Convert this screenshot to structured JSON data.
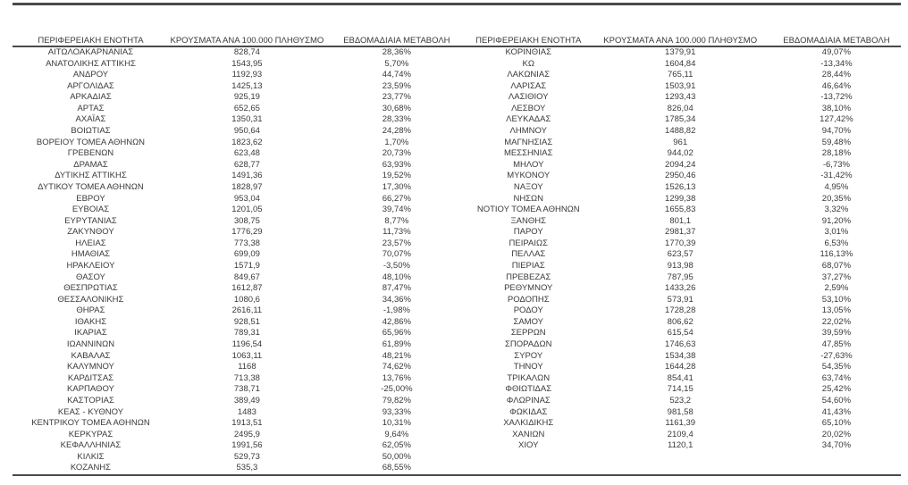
{
  "table": {
    "headers": [
      "ΠΕΡΙΦΕΡΕΙΑΚΗ ΕΝΟΤΗΤΑ",
      "ΚΡΟΥΣΜΑΤΑ ΑΝΑ 100.000 ΠΛΗΘΥΣΜΟ",
      "ΕΒΔΟΜΑΔΙΑΙΑ ΜΕΤΑΒΟΛΗ"
    ],
    "left_rows": [
      [
        "ΑΙΤΩΛΟΑΚΑΡΝΑΝΙΑΣ",
        "828,74",
        "28,36%"
      ],
      [
        "ΑΝΑΤΟΛΙΚΗΣ ΑΤΤΙΚΗΣ",
        "1543,95",
        "5,70%"
      ],
      [
        "ΑΝΔΡΟΥ",
        "1192,93",
        "44,74%"
      ],
      [
        "ΑΡΓΟΛΙΔΑΣ",
        "1425,13",
        "23,59%"
      ],
      [
        "ΑΡΚΑΔΙΑΣ",
        "925,19",
        "23,77%"
      ],
      [
        "ΑΡΤΑΣ",
        "652,65",
        "30,68%"
      ],
      [
        "ΑΧΑΪΑΣ",
        "1350,31",
        "28,33%"
      ],
      [
        "ΒΟΙΩΤΙΑΣ",
        "950,64",
        "24,28%"
      ],
      [
        "ΒΟΡΕΙΟΥ ΤΟΜΕΑ ΑΘΗΝΩΝ",
        "1823,62",
        "1,70%"
      ],
      [
        "ΓΡΕΒΕΝΩΝ",
        "623,48",
        "20,73%"
      ],
      [
        "ΔΡΑΜΑΣ",
        "628,77",
        "63,93%"
      ],
      [
        "ΔΥΤΙΚΗΣ ΑΤΤΙΚΗΣ",
        "1491,36",
        "19,52%"
      ],
      [
        "ΔΥΤΙΚΟΥ ΤΟΜΕΑ ΑΘΗΝΩΝ",
        "1828,97",
        "17,30%"
      ],
      [
        "ΕΒΡΟΥ",
        "953,04",
        "66,27%"
      ],
      [
        "ΕΥΒΟΙΑΣ",
        "1201,05",
        "39,74%"
      ],
      [
        "ΕΥΡΥΤΑΝΙΑΣ",
        "308,75",
        "8,77%"
      ],
      [
        "ΖΑΚΥΝΘΟΥ",
        "1776,29",
        "11,73%"
      ],
      [
        "ΗΛΕΙΑΣ",
        "773,38",
        "23,57%"
      ],
      [
        "ΗΜΑΘΙΑΣ",
        "699,09",
        "70,07%"
      ],
      [
        "ΗΡΑΚΛΕΙΟΥ",
        "1571,9",
        "-3,50%"
      ],
      [
        "ΘΑΣΟΥ",
        "849,67",
        "48,10%"
      ],
      [
        "ΘΕΣΠΡΩΤΙΑΣ",
        "1612,87",
        "87,47%"
      ],
      [
        "ΘΕΣΣΑΛΟΝΙΚΗΣ",
        "1080,6",
        "34,36%"
      ],
      [
        "ΘΗΡΑΣ",
        "2616,11",
        "-1,98%"
      ],
      [
        "ΙΘΑΚΗΣ",
        "928,51",
        "42,86%"
      ],
      [
        "ΙΚΑΡΙΑΣ",
        "789,31",
        "65,96%"
      ],
      [
        "ΙΩΑΝΝΙΝΩΝ",
        "1196,54",
        "61,89%"
      ],
      [
        "ΚΑΒΑΛΑΣ",
        "1063,11",
        "48,21%"
      ],
      [
        "ΚΑΛΥΜΝΟΥ",
        "1168",
        "74,62%"
      ],
      [
        "ΚΑΡΔΙΤΣΑΣ",
        "713,38",
        "13,76%"
      ],
      [
        "ΚΑΡΠΑΘΟΥ",
        "738,71",
        "-25,00%"
      ],
      [
        "ΚΑΣΤΟΡΙΑΣ",
        "389,49",
        "79,82%"
      ],
      [
        "ΚΕΑΣ - ΚΥΘΝΟΥ",
        "1483",
        "93,33%"
      ],
      [
        "ΚΕΝΤΡΙΚΟΥ ΤΟΜΕΑ ΑΘΗΝΩΝ",
        "1913,51",
        "10,31%"
      ],
      [
        "ΚΕΡΚΥΡΑΣ",
        "2495,9",
        "9,64%"
      ],
      [
        "ΚΕΦΑΛΛΗΝΙΑΣ",
        "1991,56",
        "62,05%"
      ],
      [
        "ΚΙΛΚΙΣ",
        "529,73",
        "50,00%"
      ],
      [
        "ΚΟΖΑΝΗΣ",
        "535,3",
        "68,55%"
      ]
    ],
    "right_rows": [
      [
        "ΚΟΡΙΝΘΙΑΣ",
        "1379,91",
        "49,07%"
      ],
      [
        "ΚΩ",
        "1604,84",
        "-13,34%"
      ],
      [
        "ΛΑΚΩΝΙΑΣ",
        "765,11",
        "28,44%"
      ],
      [
        "ΛΑΡΙΣΑΣ",
        "1503,91",
        "46,64%"
      ],
      [
        "ΛΑΣΙΘΙΟΥ",
        "1293,43",
        "-13,72%"
      ],
      [
        "ΛΕΣΒΟΥ",
        "826,04",
        "38,10%"
      ],
      [
        "ΛΕΥΚΑΔΑΣ",
        "1785,34",
        "127,42%"
      ],
      [
        "ΛΗΜΝΟΥ",
        "1488,82",
        "94,70%"
      ],
      [
        "ΜΑΓΝΗΣΙΑΣ",
        "961",
        "59,48%"
      ],
      [
        "ΜΕΣΣΗΝΙΑΣ",
        "944,02",
        "28,18%"
      ],
      [
        "ΜΗΛΟΥ",
        "2094,24",
        "-6,73%"
      ],
      [
        "ΜΥΚΟΝΟΥ",
        "2950,46",
        "-31,42%"
      ],
      [
        "ΝΑΞΟΥ",
        "1526,13",
        "4,95%"
      ],
      [
        "ΝΗΣΩΝ",
        "1299,38",
        "20,35%"
      ],
      [
        "ΝΟΤΙΟΥ ΤΟΜΕΑ ΑΘΗΝΩΝ",
        "1655,83",
        "3,32%"
      ],
      [
        "ΞΑΝΘΗΣ",
        "801,1",
        "91,20%"
      ],
      [
        "ΠΑΡΟΥ",
        "2981,37",
        "3,01%"
      ],
      [
        "ΠΕΙΡΑΙΩΣ",
        "1770,39",
        "6,53%"
      ],
      [
        "ΠΕΛΛΑΣ",
        "623,57",
        "116,13%"
      ],
      [
        "ΠΙΕΡΙΑΣ",
        "913,98",
        "68,07%"
      ],
      [
        "ΠΡΕΒΕΖΑΣ",
        "787,95",
        "37,27%"
      ],
      [
        "ΡΕΘΥΜΝΟΥ",
        "1433,26",
        "2,59%"
      ],
      [
        "ΡΟΔΟΠΗΣ",
        "573,91",
        "53,10%"
      ],
      [
        "ΡΟΔΟΥ",
        "1728,28",
        "13,05%"
      ],
      [
        "ΣΑΜΟΥ",
        "806,62",
        "22,02%"
      ],
      [
        "ΣΕΡΡΩΝ",
        "615,54",
        "39,59%"
      ],
      [
        "ΣΠΟΡΑΔΩΝ",
        "1746,63",
        "47,85%"
      ],
      [
        "ΣΥΡΟΥ",
        "1534,38",
        "-27,63%"
      ],
      [
        "ΤΗΝΟΥ",
        "1644,28",
        "54,35%"
      ],
      [
        "ΤΡΙΚΑΛΩΝ",
        "854,41",
        "63,74%"
      ],
      [
        "ΦΘΙΩΤΙΔΑΣ",
        "714,15",
        "25,42%"
      ],
      [
        "ΦΛΩΡΙΝΑΣ",
        "523,2",
        "54,60%"
      ],
      [
        "ΦΩΚΙΔΑΣ",
        "981,58",
        "41,43%"
      ],
      [
        "ΧΑΛΚΙΔΙΚΗΣ",
        "1161,39",
        "65,10%"
      ],
      [
        "ΧΑΝΙΩΝ",
        "2109,4",
        "20,02%"
      ],
      [
        "ΧΙΟΥ",
        "1120,1",
        "34,70%"
      ]
    ]
  },
  "colors": {
    "text": "#3a3a3a",
    "rule": "#4a4a4a",
    "background": "#ffffff"
  }
}
